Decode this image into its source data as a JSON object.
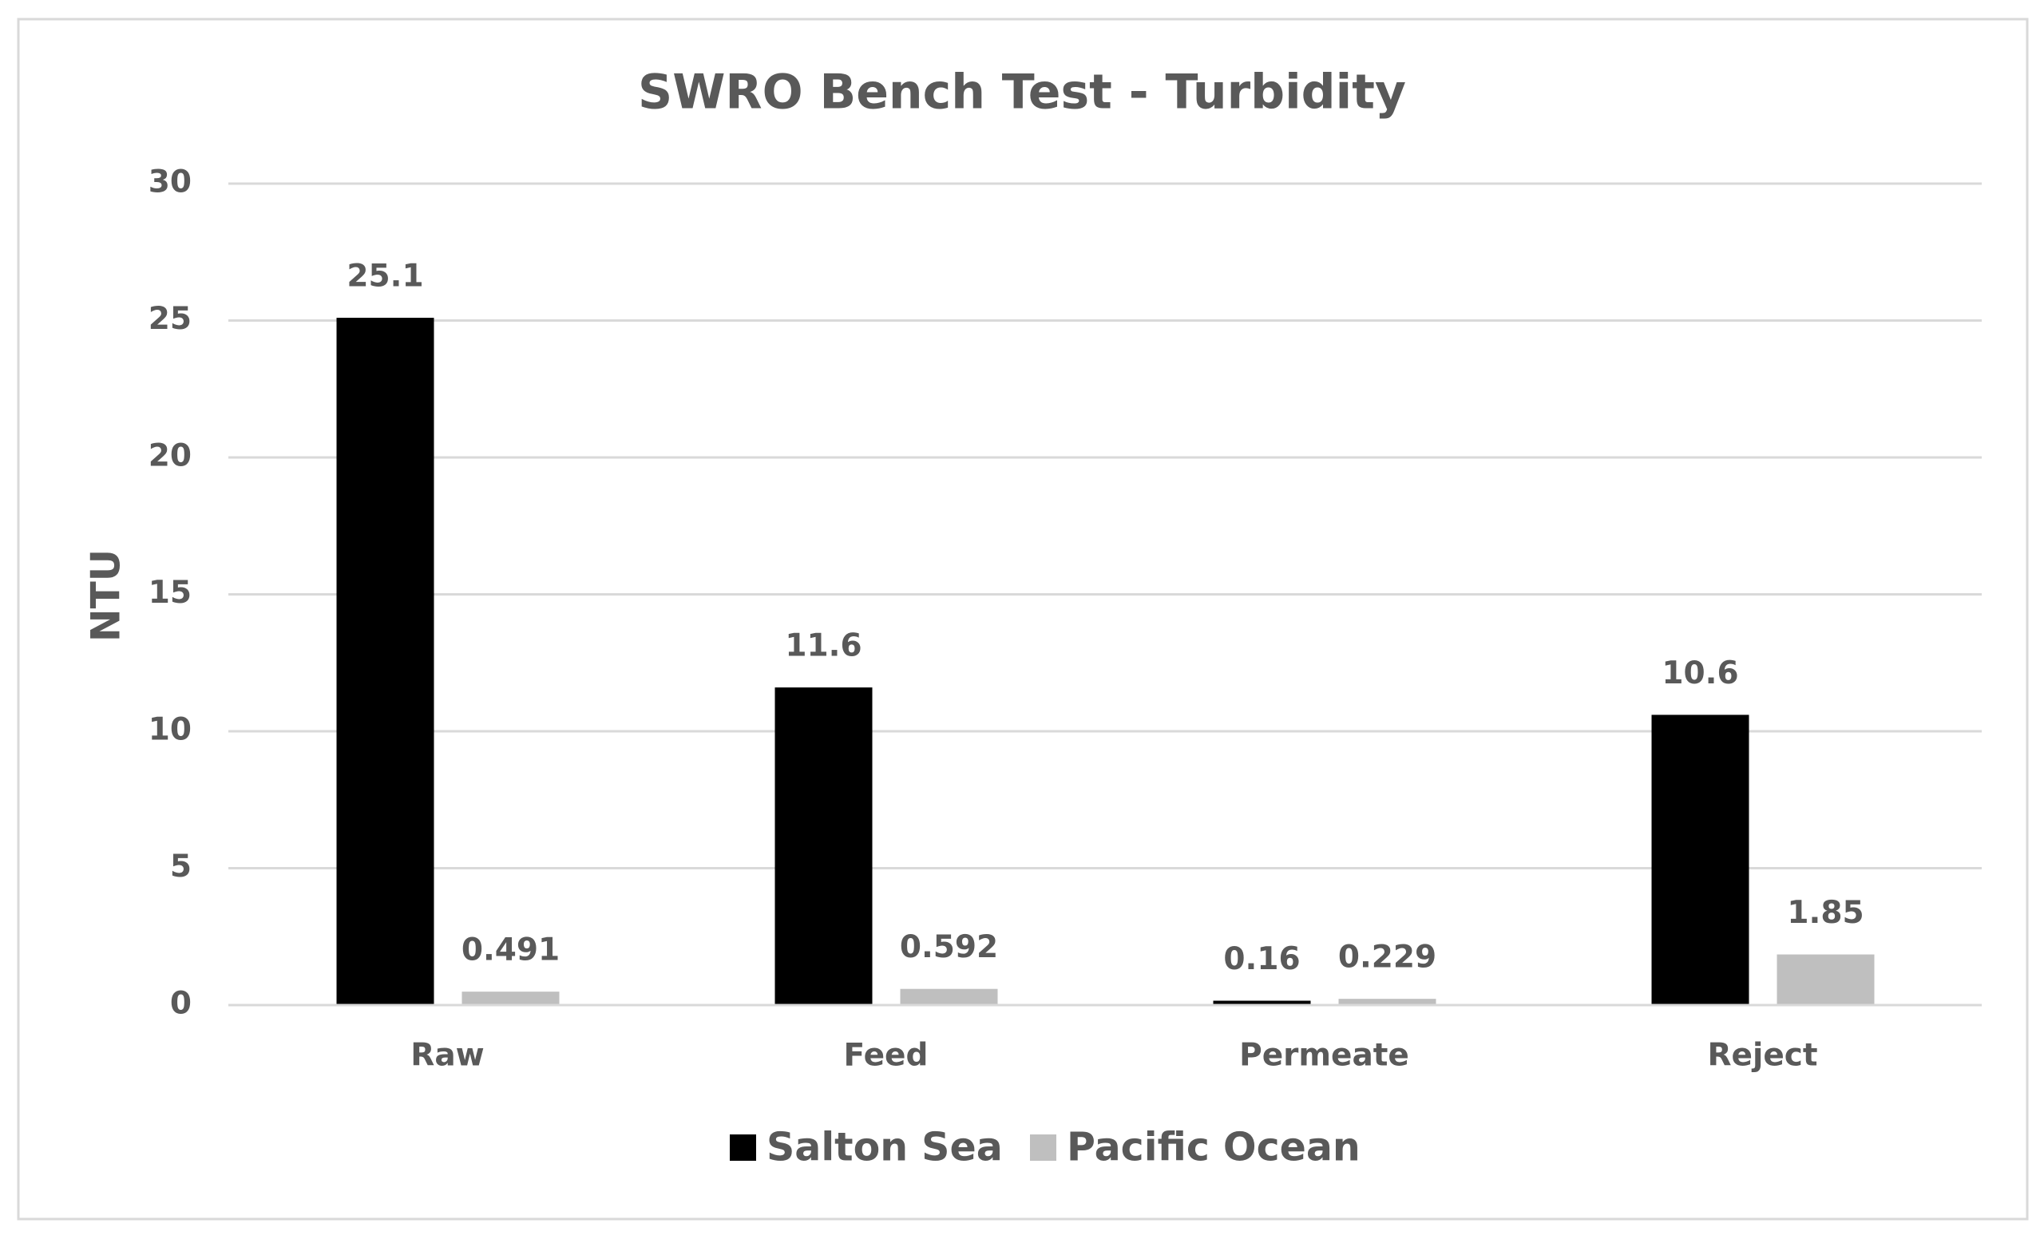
{
  "chart_data": {
    "type": "bar",
    "title": "SWRO Bench Test - Turbidity",
    "y_label": "NTU",
    "categories": [
      "Raw",
      "Feed",
      "Permeate",
      "Reject"
    ],
    "series": [
      {
        "name": "Salton Sea",
        "color": "#000000",
        "values": [
          25.1,
          11.6,
          0.16,
          10.6
        ]
      },
      {
        "name": "Pacific Ocean",
        "color": "#bfbfbf",
        "values": [
          0.491,
          0.592,
          0.229,
          1.85
        ]
      }
    ],
    "ylim": [
      0,
      30
    ],
    "yticks": [
      0,
      5,
      10,
      15,
      20,
      25,
      30
    ],
    "grid": true,
    "legend": "bottom"
  }
}
